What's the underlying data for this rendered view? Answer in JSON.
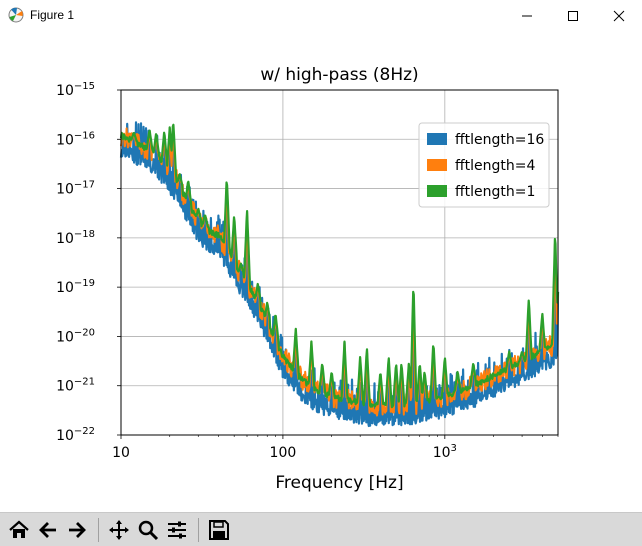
{
  "window": {
    "title": "Figure 1",
    "icon": "matplotlib-figure-icon"
  },
  "window_controls": [
    "minimize-icon",
    "maximize-icon",
    "close-icon"
  ],
  "toolbar": {
    "buttons": [
      {
        "name": "home-icon",
        "tooltip": "Reset original view"
      },
      {
        "name": "back-arrow-icon",
        "tooltip": "Back to previous view"
      },
      {
        "name": "forward-arrow-icon",
        "tooltip": "Forward to next view"
      },
      {
        "name": "pan-move-icon",
        "tooltip": "Pan"
      },
      {
        "name": "zoom-magnifier-icon",
        "tooltip": "Zoom to rectangle"
      },
      {
        "name": "configure-subplots-icon",
        "tooltip": "Configure subplots"
      },
      {
        "name": "save-floppy-icon",
        "tooltip": "Save the figure"
      }
    ]
  },
  "chart_data": {
    "type": "line",
    "title": "w/ high-pass (8Hz)",
    "xlabel": "Frequency [Hz]",
    "ylabel": "",
    "xscale": "log",
    "yscale": "log",
    "xlim": [
      10,
      5000
    ],
    "ylim": [
      1e-22,
      1e-15
    ],
    "grid": true,
    "legend_position": "top-right",
    "x_ticks": [
      {
        "value": 10,
        "label": "10",
        "sup": ""
      },
      {
        "value": 100,
        "label": "100",
        "sup": ""
      },
      {
        "value": 1000,
        "label": "10",
        "sup": "3"
      }
    ],
    "y_ticks": [
      {
        "value": 1e-15,
        "label": "10",
        "sup": "−15"
      },
      {
        "value": 1e-16,
        "label": "10",
        "sup": "−16"
      },
      {
        "value": 1e-17,
        "label": "10",
        "sup": "−17"
      },
      {
        "value": 1e-18,
        "label": "10",
        "sup": "−18"
      },
      {
        "value": 1e-19,
        "label": "10",
        "sup": "−19"
      },
      {
        "value": 1e-20,
        "label": "10",
        "sup": "−20"
      },
      {
        "value": 1e-21,
        "label": "10",
        "sup": "−21"
      },
      {
        "value": 1e-22,
        "label": "10",
        "sup": "−22"
      }
    ],
    "series": [
      {
        "name": "fftlength=16",
        "color": "#1f77b4",
        "noise_band": 0.45
      },
      {
        "name": "fftlength=4",
        "color": "#ff7f0e",
        "noise_band": 0.22
      },
      {
        "name": "fftlength=1",
        "color": "#2ca02c",
        "noise_band": 0.06
      }
    ],
    "baseline": [
      [
        10,
        1.2e-16
      ],
      [
        12,
        9e-17
      ],
      [
        15,
        6e-17
      ],
      [
        18,
        3.5e-17
      ],
      [
        22,
        1.5e-17
      ],
      [
        26,
        5e-18
      ],
      [
        30,
        2.2e-18
      ],
      [
        35,
        1.4e-18
      ],
      [
        40,
        1.1e-18
      ],
      [
        45,
        6e-19
      ],
      [
        50,
        3e-19
      ],
      [
        60,
        1.2e-19
      ],
      [
        70,
        5e-20
      ],
      [
        80,
        2e-20
      ],
      [
        90,
        8e-21
      ],
      [
        100,
        4e-21
      ],
      [
        120,
        1.8e-21
      ],
      [
        150,
        9e-22
      ],
      [
        200,
        6e-22
      ],
      [
        300,
        4.5e-22
      ],
      [
        400,
        4e-22
      ],
      [
        500,
        4e-22
      ],
      [
        700,
        4.5e-22
      ],
      [
        1000,
        6e-22
      ],
      [
        1500,
        1e-21
      ],
      [
        2000,
        1.6e-21
      ],
      [
        3000,
        3e-21
      ],
      [
        4000,
        5e-21
      ],
      [
        5000,
        8e-21
      ]
    ],
    "peaks": [
      {
        "x": 12,
        "y": 1.4e-16
      },
      {
        "x": 15,
        "y": 1.6e-16
      },
      {
        "x": 16.5,
        "y": 1.4e-16
      },
      {
        "x": 18.5,
        "y": 1.5e-16
      },
      {
        "x": 20,
        "y": 1.8e-16
      },
      {
        "x": 21,
        "y": 2.5e-16
      },
      {
        "x": 23,
        "y": 2e-17
      },
      {
        "x": 25,
        "y": 5e-18
      },
      {
        "x": 26,
        "y": 1.5e-17
      },
      {
        "x": 30,
        "y": 4e-18
      },
      {
        "x": 33,
        "y": 3e-18
      },
      {
        "x": 36,
        "y": 1e-18
      },
      {
        "x": 40,
        "y": 1e-18
      },
      {
        "x": 45,
        "y": 1.8e-17
      },
      {
        "x": 50,
        "y": 3e-18
      },
      {
        "x": 55,
        "y": 3e-19
      },
      {
        "x": 60,
        "y": 4e-18
      },
      {
        "x": 70,
        "y": 1.2e-19
      },
      {
        "x": 80,
        "y": 5e-20
      },
      {
        "x": 90,
        "y": 3e-20
      },
      {
        "x": 120,
        "y": 1.5e-20
      },
      {
        "x": 150,
        "y": 8e-21
      },
      {
        "x": 175,
        "y": 3e-21
      },
      {
        "x": 200,
        "y": 2e-21
      },
      {
        "x": 240,
        "y": 8e-21
      },
      {
        "x": 300,
        "y": 4e-21
      },
      {
        "x": 330,
        "y": 6e-21
      },
      {
        "x": 400,
        "y": 2e-21
      },
      {
        "x": 450,
        "y": 4e-21
      },
      {
        "x": 500,
        "y": 3e-21
      },
      {
        "x": 540,
        "y": 3e-21
      },
      {
        "x": 600,
        "y": 3e-21
      },
      {
        "x": 640,
        "y": 1.4e-19
      },
      {
        "x": 700,
        "y": 3e-21
      },
      {
        "x": 750,
        "y": 2e-21
      },
      {
        "x": 850,
        "y": 8e-21
      },
      {
        "x": 1000,
        "y": 4e-21
      },
      {
        "x": 1200,
        "y": 2e-21
      },
      {
        "x": 1500,
        "y": 3e-21
      },
      {
        "x": 2500,
        "y": 5e-21
      },
      {
        "x": 3000,
        "y": 5e-21
      },
      {
        "x": 3300,
        "y": 6e-20
      },
      {
        "x": 4000,
        "y": 3e-20
      },
      {
        "x": 4800,
        "y": 1.5e-18
      },
      {
        "x": 5000,
        "y": 8e-20
      }
    ]
  }
}
